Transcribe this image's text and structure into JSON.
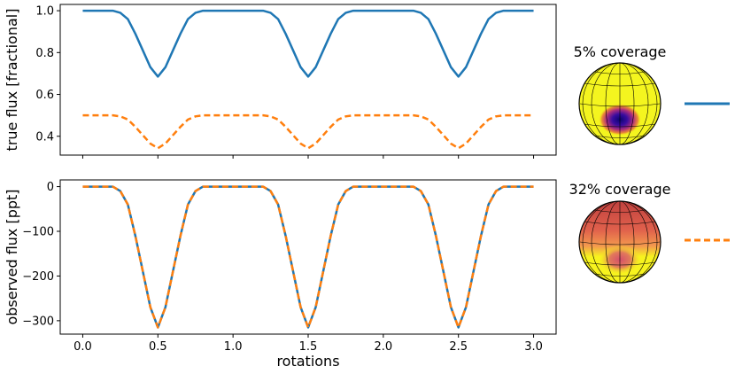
{
  "chart_data": [
    {
      "type": "line",
      "ylabel": "true flux [fractional]",
      "xlim": [
        -0.15,
        3.15
      ],
      "ylim": [
        0.31,
        1.03
      ],
      "yticks": [
        0.4,
        0.6,
        0.8,
        1.0
      ],
      "ytick_labels": [
        "0.4",
        "0.6",
        "0.8",
        "1.0"
      ],
      "xticks": [
        0.0,
        0.5,
        1.0,
        1.5,
        2.0,
        2.5,
        3.0
      ],
      "xtick_labels_shown": false,
      "series": [
        {
          "color": "#1f77b4",
          "style": "solid",
          "x": [
            0.0,
            0.1,
            0.2,
            0.25,
            0.3,
            0.35,
            0.4,
            0.45,
            0.5,
            0.55,
            0.6,
            0.65,
            0.7,
            0.75,
            0.8,
            0.9,
            1.0,
            1.1,
            1.2,
            1.25,
            1.3,
            1.35,
            1.4,
            1.45,
            1.5,
            1.55,
            1.6,
            1.65,
            1.7,
            1.75,
            1.8,
            1.9,
            2.0,
            2.1,
            2.2,
            2.25,
            2.3,
            2.35,
            2.4,
            2.45,
            2.5,
            2.55,
            2.6,
            2.65,
            2.7,
            2.75,
            2.8,
            2.9,
            3.0
          ],
          "y": [
            1.0,
            1.0,
            1.0,
            0.99,
            0.96,
            0.89,
            0.81,
            0.73,
            0.685,
            0.73,
            0.81,
            0.89,
            0.96,
            0.99,
            1.0,
            1.0,
            1.0,
            1.0,
            1.0,
            0.99,
            0.96,
            0.89,
            0.81,
            0.73,
            0.685,
            0.73,
            0.81,
            0.89,
            0.96,
            0.99,
            1.0,
            1.0,
            1.0,
            1.0,
            1.0,
            0.99,
            0.96,
            0.89,
            0.81,
            0.73,
            0.685,
            0.73,
            0.81,
            0.89,
            0.96,
            0.99,
            1.0,
            1.0,
            1.0
          ]
        },
        {
          "color": "#ff7f0e",
          "style": "dashed",
          "x": [
            0.0,
            0.1,
            0.2,
            0.25,
            0.3,
            0.35,
            0.4,
            0.45,
            0.5,
            0.55,
            0.6,
            0.65,
            0.7,
            0.75,
            0.8,
            0.9,
            1.0,
            1.1,
            1.2,
            1.25,
            1.3,
            1.35,
            1.4,
            1.45,
            1.5,
            1.55,
            1.6,
            1.65,
            1.7,
            1.75,
            1.8,
            1.9,
            2.0,
            2.1,
            2.2,
            2.25,
            2.3,
            2.35,
            2.4,
            2.45,
            2.5,
            2.55,
            2.6,
            2.65,
            2.7,
            2.75,
            2.8,
            2.9,
            3.0
          ],
          "y": [
            0.5,
            0.5,
            0.5,
            0.495,
            0.48,
            0.445,
            0.405,
            0.365,
            0.343,
            0.365,
            0.405,
            0.445,
            0.48,
            0.495,
            0.5,
            0.5,
            0.5,
            0.5,
            0.5,
            0.495,
            0.48,
            0.445,
            0.405,
            0.365,
            0.343,
            0.365,
            0.405,
            0.445,
            0.48,
            0.495,
            0.5,
            0.5,
            0.5,
            0.5,
            0.5,
            0.495,
            0.48,
            0.445,
            0.405,
            0.365,
            0.343,
            0.365,
            0.405,
            0.445,
            0.48,
            0.495,
            0.5,
            0.5,
            0.5
          ]
        }
      ]
    },
    {
      "type": "line",
      "ylabel": "observed flux [ppt]",
      "xlabel": "rotations",
      "xlim": [
        -0.15,
        3.15
      ],
      "ylim": [
        -330,
        15
      ],
      "yticks": [
        0,
        -100,
        -200,
        -300
      ],
      "ytick_labels": [
        "0",
        "−100",
        "−200",
        "−300"
      ],
      "xticks": [
        0.0,
        0.5,
        1.0,
        1.5,
        2.0,
        2.5,
        3.0
      ],
      "xtick_labels": [
        "0.0",
        "0.5",
        "1.0",
        "1.5",
        "2.0",
        "2.5",
        "3.0"
      ],
      "series": [
        {
          "color": "#1f77b4",
          "style": "solid",
          "x": [
            0.0,
            0.1,
            0.2,
            0.25,
            0.3,
            0.35,
            0.4,
            0.45,
            0.5,
            0.55,
            0.6,
            0.65,
            0.7,
            0.75,
            0.8,
            0.9,
            1.0,
            1.1,
            1.2,
            1.25,
            1.3,
            1.35,
            1.4,
            1.45,
            1.5,
            1.55,
            1.6,
            1.65,
            1.7,
            1.75,
            1.8,
            1.9,
            2.0,
            2.1,
            2.2,
            2.25,
            2.3,
            2.35,
            2.4,
            2.45,
            2.5,
            2.55,
            2.6,
            2.65,
            2.7,
            2.75,
            2.8,
            2.9,
            3.0
          ],
          "y": [
            0,
            0,
            0,
            -10,
            -40,
            -110,
            -190,
            -270,
            -315,
            -270,
            -190,
            -110,
            -40,
            -10,
            0,
            0,
            0,
            0,
            0,
            -10,
            -40,
            -110,
            -190,
            -270,
            -315,
            -270,
            -190,
            -110,
            -40,
            -10,
            0,
            0,
            0,
            0,
            0,
            -10,
            -40,
            -110,
            -190,
            -270,
            -315,
            -270,
            -190,
            -110,
            -40,
            -10,
            0,
            0,
            0
          ]
        },
        {
          "color": "#ff7f0e",
          "style": "dashed",
          "x": [
            0.0,
            0.1,
            0.2,
            0.25,
            0.3,
            0.35,
            0.4,
            0.45,
            0.5,
            0.55,
            0.6,
            0.65,
            0.7,
            0.75,
            0.8,
            0.9,
            1.0,
            1.1,
            1.2,
            1.25,
            1.3,
            1.35,
            1.4,
            1.45,
            1.5,
            1.55,
            1.6,
            1.65,
            1.7,
            1.75,
            1.8,
            1.9,
            2.0,
            2.1,
            2.2,
            2.25,
            2.3,
            2.35,
            2.4,
            2.45,
            2.5,
            2.55,
            2.6,
            2.65,
            2.7,
            2.75,
            2.8,
            2.9,
            3.0
          ],
          "y": [
            0,
            0,
            0,
            -10,
            -40,
            -110,
            -190,
            -270,
            -315,
            -270,
            -190,
            -110,
            -40,
            -10,
            0,
            0,
            0,
            0,
            0,
            -10,
            -40,
            -110,
            -190,
            -270,
            -315,
            -270,
            -190,
            -110,
            -40,
            -10,
            0,
            0,
            0,
            0,
            0,
            -10,
            -40,
            -110,
            -190,
            -270,
            -315,
            -270,
            -190,
            -110,
            -40,
            -10,
            0,
            0,
            0
          ]
        }
      ]
    }
  ],
  "legend_panels": [
    {
      "title": "5% coverage",
      "map": "yellow-with-dark-spot",
      "line_color": "#1f77b4",
      "line_style": "solid"
    },
    {
      "title": "32% coverage",
      "map": "red-cap-with-faint-spot",
      "line_color": "#ff7f0e",
      "line_style": "dashed"
    }
  ]
}
